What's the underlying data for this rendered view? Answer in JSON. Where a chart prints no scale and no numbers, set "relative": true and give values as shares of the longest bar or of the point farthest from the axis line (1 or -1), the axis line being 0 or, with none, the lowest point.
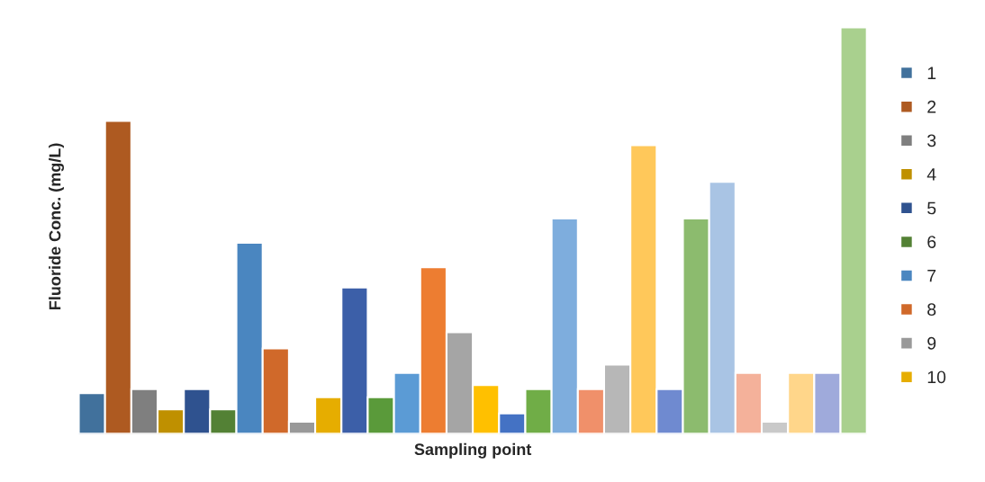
{
  "chart_data": {
    "type": "bar",
    "relative": true,
    "xlabel": "Sampling point",
    "ylabel": "Fluoride Conc. (mg/L)",
    "legend": "right",
    "grid": false,
    "categories": [
      null
    ],
    "series": [
      {
        "name": "1",
        "color": "#41719c",
        "values": [
          0.1
        ]
      },
      {
        "name": "2",
        "color": "#ae5a21",
        "values": [
          0.77
        ]
      },
      {
        "name": "3",
        "color": "#7f7f7f",
        "values": [
          0.11
        ]
      },
      {
        "name": "4",
        "color": "#bf9000",
        "values": [
          0.06
        ]
      },
      {
        "name": "5",
        "color": "#2f528f",
        "values": [
          0.11
        ]
      },
      {
        "name": "6",
        "color": "#538135",
        "values": [
          0.06
        ]
      },
      {
        "name": "7",
        "color": "#4a86c0",
        "values": [
          0.47
        ]
      },
      {
        "name": "8",
        "color": "#d0692a",
        "values": [
          0.21
        ]
      },
      {
        "name": "9",
        "color": "#999999",
        "values": [
          0.03
        ]
      },
      {
        "name": "10",
        "color": "#e6ad00",
        "values": [
          0.09
        ]
      },
      {
        "color": "#3c5fa8",
        "values": [
          0.36
        ]
      },
      {
        "color": "#5a9a3a",
        "values": [
          0.09
        ]
      },
      {
        "color": "#5b9bd5",
        "values": [
          0.15
        ]
      },
      {
        "color": "#ed7d31",
        "values": [
          0.41
        ]
      },
      {
        "color": "#a5a5a5",
        "values": [
          0.25
        ]
      },
      {
        "color": "#ffc000",
        "values": [
          0.12
        ]
      },
      {
        "color": "#4472c4",
        "values": [
          0.05
        ]
      },
      {
        "color": "#70ad47",
        "values": [
          0.11
        ]
      },
      {
        "color": "#7eaddd",
        "values": [
          0.53
        ]
      },
      {
        "color": "#f0906a",
        "values": [
          0.11
        ]
      },
      {
        "color": "#b7b7b7",
        "values": [
          0.17
        ]
      },
      {
        "color": "#ffc85a",
        "values": [
          0.71
        ]
      },
      {
        "color": "#6f8ad0",
        "values": [
          0.11
        ]
      },
      {
        "color": "#8cbb6e",
        "values": [
          0.53
        ]
      },
      {
        "color": "#a9c4e4",
        "values": [
          0.62
        ]
      },
      {
        "color": "#f4b19a",
        "values": [
          0.15
        ]
      },
      {
        "color": "#c9c9c9",
        "values": [
          0.03
        ]
      },
      {
        "color": "#ffd68a",
        "values": [
          0.15
        ]
      },
      {
        "color": "#9faadb",
        "values": [
          0.15
        ]
      },
      {
        "color": "#a9d08e",
        "values": [
          1
        ]
      }
    ]
  }
}
